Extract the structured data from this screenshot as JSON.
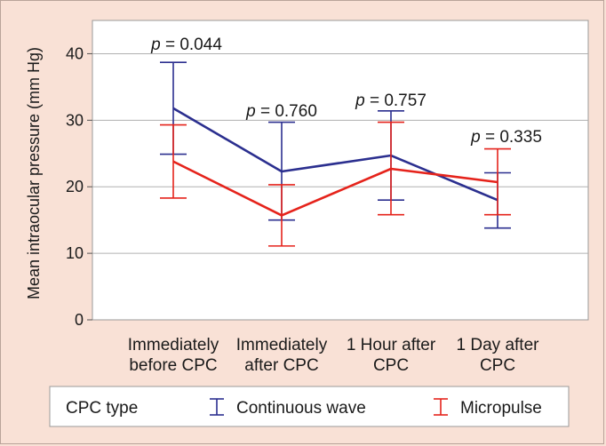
{
  "chart_data": {
    "type": "line",
    "title": "",
    "ylabel": "Mean intraocular pressure (mm Hg)",
    "xlabel": "",
    "ylim": [
      0,
      45
    ],
    "yticks": [
      0,
      10,
      20,
      30,
      40
    ],
    "grid": true,
    "categories": [
      [
        "Immediately",
        "before CPC"
      ],
      [
        "Immediately",
        "after CPC"
      ],
      [
        "1 Hour after",
        "CPC"
      ],
      [
        "1 Day after",
        "CPC"
      ]
    ],
    "series": [
      {
        "name": "Continuous wave",
        "color": "#2b2f8f",
        "values": [
          31.8,
          22.3,
          24.7,
          18.0
        ],
        "err_low": [
          24.9,
          15.0,
          18.0,
          13.8
        ],
        "err_high": [
          38.7,
          29.7,
          31.4,
          22.1
        ]
      },
      {
        "name": "Micropulse",
        "color": "#e5231b",
        "values": [
          23.8,
          15.7,
          22.7,
          20.7
        ],
        "err_low": [
          18.3,
          11.1,
          15.8,
          15.8
        ],
        "err_high": [
          29.3,
          20.3,
          29.7,
          25.7
        ]
      }
    ],
    "p_values": [
      {
        "label": "p",
        "text": " = 0.044"
      },
      {
        "label": "p",
        "text": " = 0.760"
      },
      {
        "label": "p",
        "text": " = 0.757"
      },
      {
        "label": "p",
        "text": " = 0.335"
      }
    ],
    "legend": {
      "title": "CPC type",
      "position": "bottom"
    }
  }
}
